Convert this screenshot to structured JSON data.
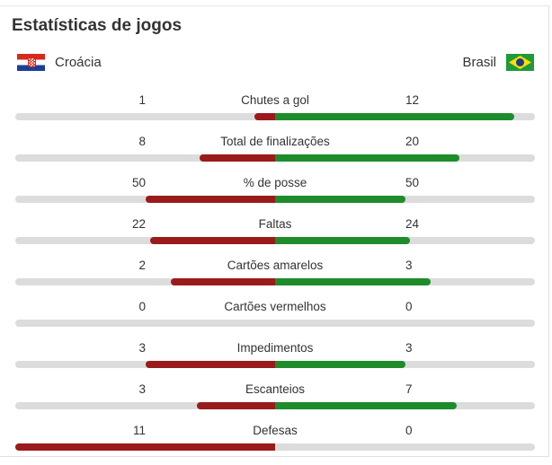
{
  "header": {
    "title": "Estatísticas de jogos"
  },
  "teams": {
    "home": {
      "name": "Croácia",
      "flag_icon": "croatia-flag-icon",
      "color": "#9a1b1b"
    },
    "away": {
      "name": "Brasil",
      "flag_icon": "brazil-flag-icon",
      "color": "#1e8c2a"
    }
  },
  "stats": [
    {
      "label": "Chutes a gol",
      "home": "1",
      "away": "12",
      "home_share": 0.08,
      "away_share": 0.92
    },
    {
      "label": "Total de finalizações",
      "home": "8",
      "away": "20",
      "home_share": 0.29,
      "away_share": 0.71
    },
    {
      "label": "% de posse",
      "home": "50",
      "away": "50",
      "home_share": 0.5,
      "away_share": 0.5
    },
    {
      "label": "Faltas",
      "home": "22",
      "away": "24",
      "home_share": 0.48,
      "away_share": 0.52
    },
    {
      "label": "Cartões amarelos",
      "home": "2",
      "away": "3",
      "home_share": 0.4,
      "away_share": 0.6
    },
    {
      "label": "Cartões vermelhos",
      "home": "0",
      "away": "0",
      "home_share": 0,
      "away_share": 0
    },
    {
      "label": "Impedimentos",
      "home": "3",
      "away": "3",
      "home_share": 0.5,
      "away_share": 0.5
    },
    {
      "label": "Escanteios",
      "home": "3",
      "away": "7",
      "home_share": 0.3,
      "away_share": 0.7
    },
    {
      "label": "Defesas",
      "home": "11",
      "away": "0",
      "home_share": 1,
      "away_share": 0
    }
  ]
}
